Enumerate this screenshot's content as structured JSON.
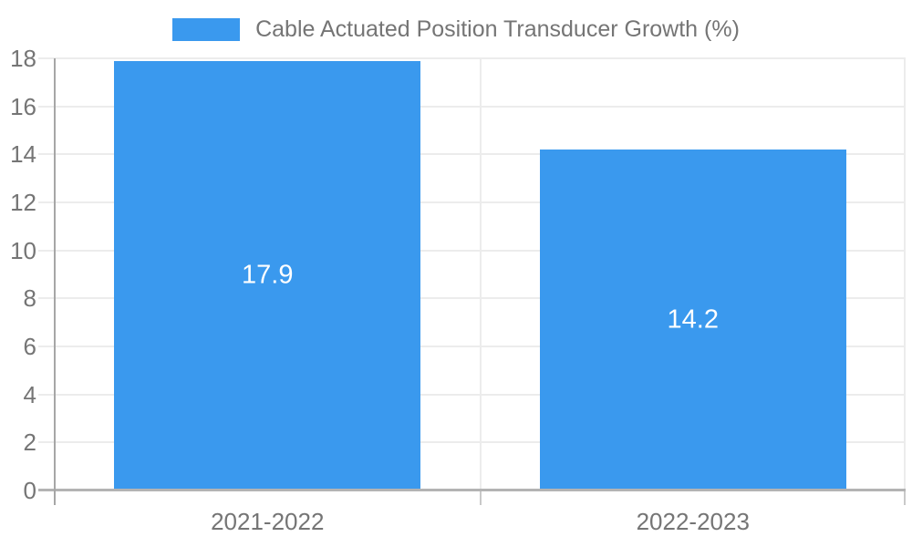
{
  "chart_data": {
    "type": "bar",
    "title": "Cable Actuated Position Transducer Growth (%)",
    "categories": [
      "2021-2022",
      "2022-2023"
    ],
    "values": [
      17.9,
      14.2
    ],
    "data_labels": [
      "17.9",
      "14.2"
    ],
    "series": [
      {
        "name": "Cable Actuated Position Transducer Growth (%)",
        "values": [
          17.9,
          14.2
        ]
      }
    ],
    "xlabel": "",
    "ylabel": "",
    "ylim": [
      0,
      18
    ],
    "yticks": [
      0,
      2,
      4,
      6,
      8,
      10,
      12,
      14,
      16,
      18
    ],
    "grid": true,
    "legend_position": "top-center",
    "bar_width_ratio": 0.72,
    "colors": {
      "bar": "#3a99ee",
      "grid_line": "#ececec",
      "axis_line": "#a6a6a6",
      "baseline": "#b3b3b3",
      "tick": "#c9c9c9",
      "text": "#757575",
      "data_label": "#ffffff",
      "background": "#ffffff"
    }
  }
}
